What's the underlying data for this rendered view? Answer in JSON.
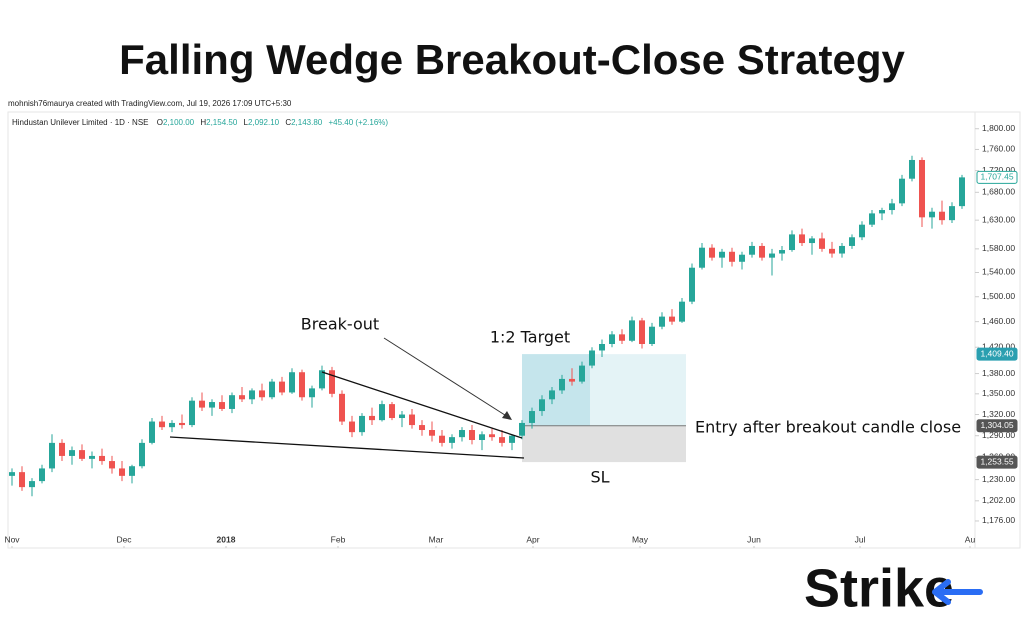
{
  "header": {
    "title": "Falling Wedge Breakout-Close Strategy",
    "credit": "mohnish76maurya created with TradingView.com, Jul 19, 2026 17:09 UTC+5:30",
    "symbol": "Hindustan Unilever Limited · 1D · NSE",
    "ohlc": [
      {
        "key": "O",
        "value": "2,100.00"
      },
      {
        "key": "H",
        "value": "2,154.50"
      },
      {
        "key": "L",
        "value": "2,092.10"
      },
      {
        "key": "C",
        "value": "2,143.80"
      }
    ],
    "change": "+45.40 (+2.16%)"
  },
  "logo": "Strike",
  "chart_data": {
    "type": "candlestick",
    "log_scale": true,
    "grid": false,
    "up_color": "#26a69a",
    "down_color": "#ef5350",
    "xlim": [
      -0.4,
      96.3
    ],
    "xticks": [
      {
        "value": 0,
        "label": "Nov"
      },
      {
        "value": 11.2,
        "label": "Dec"
      },
      {
        "value": 21.4,
        "label": "2018"
      },
      {
        "value": 32.6,
        "label": "Feb"
      },
      {
        "value": 42.4,
        "label": "Mar"
      },
      {
        "value": 52.1,
        "label": "Apr"
      },
      {
        "value": 62.8,
        "label": "May"
      },
      {
        "value": 74.2,
        "label": "Jun"
      },
      {
        "value": 84.8,
        "label": "Jul"
      },
      {
        "value": 95.8,
        "label": "Au"
      }
    ],
    "ylim": [
      1142,
      1833
    ],
    "yticks": [
      {
        "value": 1800,
        "label": "1,800.00"
      },
      {
        "value": 1760,
        "label": "1,760.00"
      },
      {
        "value": 1720,
        "label": "1,720.00"
      },
      {
        "value": 1680,
        "label": "1,680.00"
      },
      {
        "value": 1630,
        "label": "1,630.00"
      },
      {
        "value": 1580,
        "label": "1,580.00"
      },
      {
        "value": 1540,
        "label": "1,540.00"
      },
      {
        "value": 1500,
        "label": "1,500.00"
      },
      {
        "value": 1460,
        "label": "1,460.00"
      },
      {
        "value": 1420,
        "label": "1,420.00"
      },
      {
        "value": 1380,
        "label": "1,380.00"
      },
      {
        "value": 1350,
        "label": "1,350.00"
      },
      {
        "value": 1320,
        "label": "1,320.00"
      },
      {
        "value": 1290,
        "label": "1,290.00"
      },
      {
        "value": 1260,
        "label": "1,260.00"
      },
      {
        "value": 1230,
        "label": "1,230.00"
      },
      {
        "value": 1202,
        "label": "1,202.00"
      },
      {
        "value": 1176,
        "label": "1,176.00"
      }
    ],
    "open": [
      1235,
      1240,
      1220,
      1228,
      1245,
      1280,
      1262,
      1270,
      1258,
      1262,
      1255,
      1245,
      1235,
      1248,
      1280,
      1310,
      1302,
      1308,
      1305,
      1340,
      1330,
      1338,
      1328,
      1348,
      1342,
      1355,
      1345,
      1368,
      1352,
      1382,
      1345,
      1358,
      1385,
      1350,
      1310,
      1295,
      1318,
      1312,
      1335,
      1315,
      1320,
      1305,
      1298,
      1290,
      1280,
      1288,
      1298,
      1284,
      1292,
      1288,
      1280,
      1290,
      1308,
      1325,
      1342,
      1355,
      1372,
      1368,
      1392,
      1415,
      1425,
      1440,
      1430,
      1462,
      1425,
      1452,
      1468,
      1460,
      1492,
      1548,
      1582,
      1565,
      1575,
      1558,
      1570,
      1585,
      1565,
      1572,
      1578,
      1605,
      1590,
      1598,
      1580,
      1572,
      1585,
      1600,
      1622,
      1642,
      1648,
      1660,
      1705,
      1740,
      1635,
      1645,
      1630,
      1655
    ],
    "high": [
      1245,
      1248,
      1232,
      1250,
      1292,
      1285,
      1275,
      1278,
      1268,
      1272,
      1262,
      1255,
      1250,
      1285,
      1315,
      1318,
      1312,
      1320,
      1345,
      1352,
      1342,
      1348,
      1352,
      1360,
      1358,
      1365,
      1372,
      1375,
      1388,
      1386,
      1362,
      1392,
      1390,
      1355,
      1318,
      1322,
      1330,
      1340,
      1338,
      1325,
      1328,
      1312,
      1310,
      1298,
      1292,
      1302,
      1305,
      1296,
      1300,
      1298,
      1292,
      1312,
      1330,
      1348,
      1360,
      1378,
      1388,
      1398,
      1420,
      1432,
      1445,
      1448,
      1468,
      1466,
      1458,
      1475,
      1480,
      1498,
      1555,
      1590,
      1588,
      1580,
      1582,
      1575,
      1592,
      1590,
      1580,
      1585,
      1612,
      1615,
      1602,
      1608,
      1592,
      1590,
      1605,
      1628,
      1648,
      1652,
      1668,
      1712,
      1748,
      1745,
      1652,
      1665,
      1662,
      1712
    ],
    "low": [
      1222,
      1215,
      1208,
      1225,
      1240,
      1255,
      1250,
      1255,
      1245,
      1250,
      1238,
      1228,
      1225,
      1245,
      1278,
      1298,
      1295,
      1300,
      1302,
      1325,
      1318,
      1325,
      1322,
      1338,
      1335,
      1340,
      1342,
      1348,
      1350,
      1340,
      1330,
      1355,
      1345,
      1305,
      1288,
      1290,
      1305,
      1310,
      1312,
      1302,
      1300,
      1290,
      1282,
      1275,
      1272,
      1282,
      1278,
      1270,
      1283,
      1275,
      1270,
      1285,
      1300,
      1318,
      1335,
      1350,
      1362,
      1365,
      1388,
      1405,
      1420,
      1425,
      1428,
      1418,
      1422,
      1448,
      1455,
      1458,
      1488,
      1545,
      1560,
      1548,
      1550,
      1545,
      1565,
      1560,
      1535,
      1560,
      1575,
      1585,
      1570,
      1575,
      1565,
      1565,
      1580,
      1595,
      1618,
      1630,
      1640,
      1655,
      1700,
      1618,
      1615,
      1622,
      1625,
      1650
    ],
    "close": [
      1240,
      1220,
      1228,
      1245,
      1280,
      1262,
      1270,
      1258,
      1262,
      1255,
      1245,
      1235,
      1248,
      1280,
      1310,
      1302,
      1308,
      1305,
      1340,
      1330,
      1338,
      1328,
      1348,
      1342,
      1355,
      1345,
      1368,
      1352,
      1382,
      1345,
      1358,
      1385,
      1350,
      1310,
      1295,
      1318,
      1312,
      1335,
      1315,
      1320,
      1305,
      1298,
      1290,
      1280,
      1288,
      1298,
      1284,
      1292,
      1288,
      1280,
      1290,
      1308,
      1325,
      1342,
      1355,
      1372,
      1368,
      1392,
      1415,
      1425,
      1440,
      1430,
      1462,
      1425,
      1452,
      1468,
      1460,
      1492,
      1548,
      1582,
      1565,
      1575,
      1558,
      1570,
      1585,
      1565,
      1572,
      1578,
      1605,
      1590,
      1598,
      1580,
      1572,
      1585,
      1600,
      1622,
      1642,
      1648,
      1660,
      1705,
      1740,
      1635,
      1645,
      1630,
      1655,
      1707.45
    ],
    "price_tags": [
      {
        "value": 1707.45,
        "label": "1,707.45",
        "color": "#26a69a"
      },
      {
        "value": 1409.4,
        "label": "1,409.40",
        "color": "#2a9fb0"
      },
      {
        "value": 1304.05,
        "label": "1,304.05",
        "color": "#555555"
      },
      {
        "value": 1253.55,
        "label": "1,253.55",
        "color": "#555555"
      }
    ],
    "annotations": {
      "breakout": "Break-out",
      "target": "1:2 Target",
      "entry": "Entry after breakout candle close",
      "stop": "SL"
    }
  }
}
